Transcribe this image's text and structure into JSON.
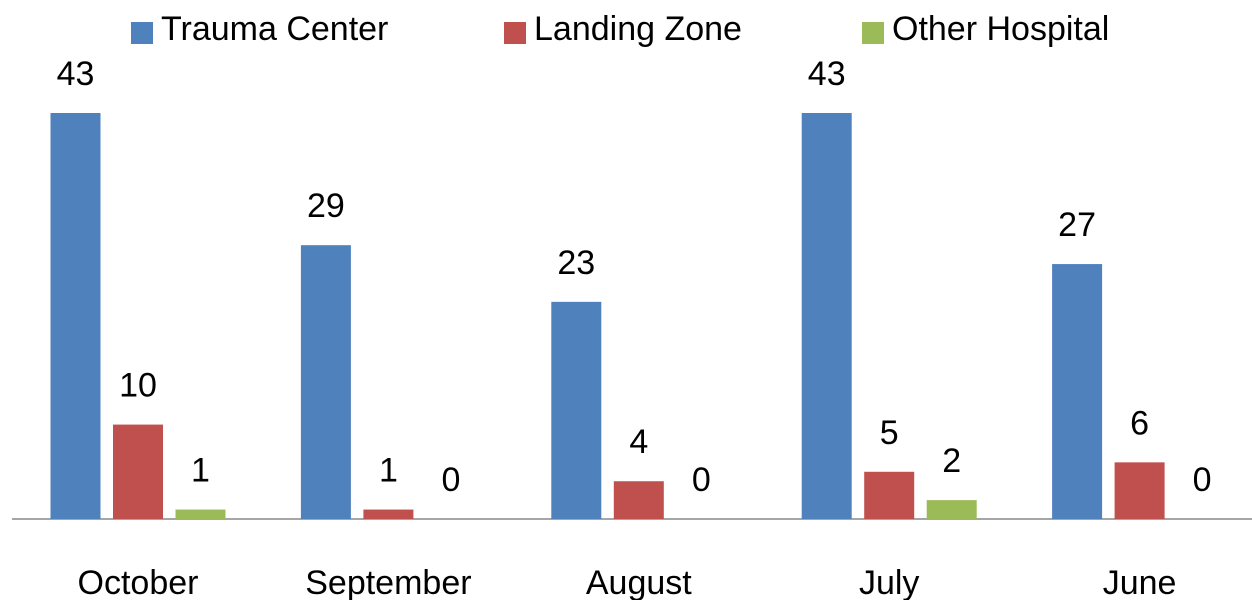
{
  "chart_data": {
    "type": "bar",
    "categories": [
      "October",
      "September",
      "August",
      "July",
      "June"
    ],
    "series": [
      {
        "name": "Trauma Center",
        "color": "#4f81bd",
        "values": [
          43,
          29,
          23,
          43,
          27
        ]
      },
      {
        "name": "Landing Zone",
        "color": "#c0504d",
        "values": [
          10,
          1,
          4,
          5,
          6
        ]
      },
      {
        "name": "Other Hospital",
        "color": "#9bbb59",
        "values": [
          1,
          0,
          0,
          2,
          0
        ]
      }
    ],
    "legend": "top"
  }
}
